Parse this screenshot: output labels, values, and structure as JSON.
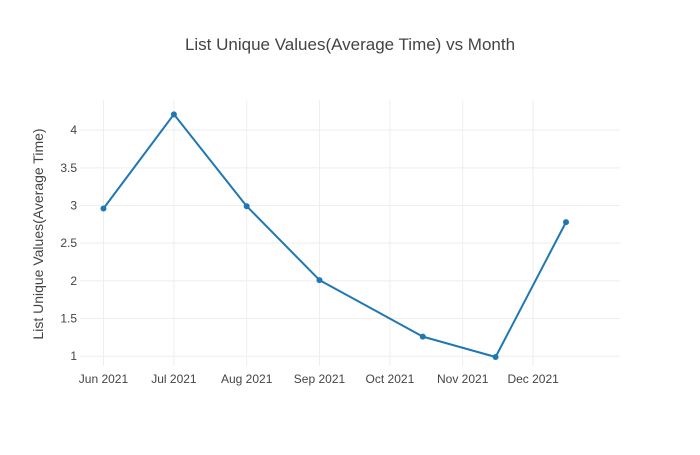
{
  "chart_data": {
    "type": "line",
    "title": "List Unique Values(Average Time) vs Month",
    "xlabel": "",
    "ylabel": "List Unique Values(Average Time)",
    "x_ticks": [
      "Jun 2021",
      "Jul 2021",
      "Aug 2021",
      "Sep 2021",
      "Oct 2021",
      "Nov 2021",
      "Dec 2021"
    ],
    "y_ticks": [
      "1",
      "1.5",
      "2",
      "2.5",
      "3",
      "3.5",
      "4"
    ],
    "xlim": [
      "2021-05-22",
      "2022-01-07"
    ],
    "ylim": [
      0.87,
      4.4
    ],
    "grid": true,
    "colors": {
      "line": "#1f77b4",
      "grid": "#eeeeee",
      "text": "#444444",
      "title": "#444444"
    },
    "series": [
      {
        "x": [
          "2021-06-01",
          "2021-07-01",
          "2021-08-01",
          "2021-09-01",
          "2021-10-15",
          "2021-11-15",
          "2021-12-15"
        ],
        "y": [
          2.96,
          4.21,
          2.99,
          2.01,
          1.26,
          0.99,
          2.78
        ]
      }
    ]
  }
}
